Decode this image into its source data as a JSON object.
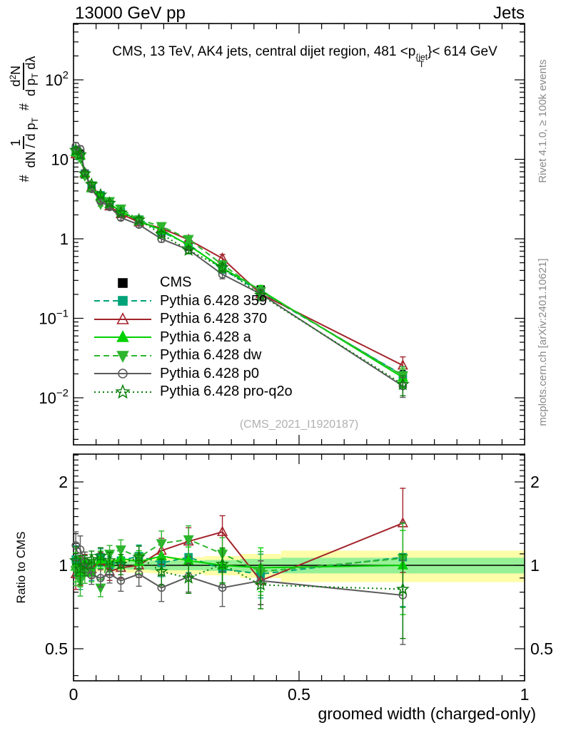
{
  "header": {
    "left": "13000 GeV pp",
    "right": "Jets"
  },
  "title": {
    "pre": "CMS, 13 TeV, AK4 jets, central dijet region, 481 <p",
    "sup": "{jet",
    "sub": "T",
    "post": "}< 614 GeV"
  },
  "ylabel_main": {
    "hash": "#",
    "frac1": {
      "num": "1",
      "den_pre": "dN / d p",
      "den_sub": "T"
    },
    "frac2": {
      "num_pre": "d",
      "num_sup": "2",
      "num_post": "N",
      "den_pre": "d p",
      "den_sub": "T",
      "den_post": " dλ"
    }
  },
  "credits": {
    "rivet": "Rivet 4.1.0, ≥ 100k events",
    "mcplots": "mcplots.cern.ch [arXiv:2401.10621]"
  },
  "watermark": "(CMS_2021_I1920187)",
  "ratio_panel_label": "Ratio to CMS",
  "xlabel": "groomed width (charged-only)",
  "chart_data": {
    "type": "line",
    "title": "CMS, 13 TeV, AK4 jets, central dijet region, 481 < pT(jet) < 614 GeV",
    "xlabel": "groomed width (charged-only)",
    "x_range": [
      0,
      1
    ],
    "x_ticks": [
      {
        "v": 0,
        "label": "0"
      },
      {
        "v": 0.5,
        "label": "0.5"
      },
      {
        "v": 1,
        "label": "1"
      }
    ],
    "x_minor_step": 0.05,
    "main_axis": {
      "scale": "log",
      "range": [
        0.0026,
        510
      ],
      "ticks": [
        {
          "v": 100,
          "base": "10",
          "exp": "2"
        },
        {
          "v": 10,
          "base": "10",
          "exp": ""
        },
        {
          "v": 1,
          "base": "1",
          "exp": ""
        },
        {
          "v": 0.1,
          "base": "10",
          "exp": "−1"
        },
        {
          "v": 0.01,
          "base": "10",
          "exp": "−2"
        }
      ]
    },
    "ratio_axis": {
      "scale": "log",
      "range": [
        0.38,
        2.52
      ],
      "ticks": [
        {
          "v": 2,
          "label": "2"
        },
        {
          "v": 1,
          "label": "1"
        },
        {
          "v": 0.5,
          "label": "0.5"
        }
      ],
      "reference_line": 1
    },
    "x": [
      0.005,
      0.015,
      0.025,
      0.04,
      0.06,
      0.08,
      0.105,
      0.145,
      0.195,
      0.255,
      0.33,
      0.415,
      0.73
    ],
    "err_frac": [
      0.1,
      0.1,
      0.07,
      0.06,
      0.06,
      0.06,
      0.07,
      0.08,
      0.09,
      0.1,
      0.12,
      0.15,
      0.28
    ],
    "cms": {
      "label": "CMS",
      "color": "#000000",
      "marker": "square",
      "marker_filled": true,
      "values": [
        12.5,
        11.8,
        6.6,
        4.6,
        3.3,
        2.7,
        2.1,
        1.62,
        1.2,
        0.8,
        0.43,
        0.23,
        0.018
      ]
    },
    "series": [
      {
        "label": "Pythia 6.428 359",
        "color": "#00a278",
        "dash": "8,5",
        "marker": "square",
        "marker_filled": true,
        "ratio": [
          1.05,
          0.93,
          1.0,
          0.95,
          1.07,
          1.0,
          1.04,
          1.08,
          1.02,
          1.07,
          0.97,
          0.93,
          1.07
        ]
      },
      {
        "label": "Pythia 6.428 370",
        "color": "#a3232b",
        "dash": "",
        "marker": "triangle",
        "marker_filled": false,
        "ratio": [
          0.93,
          0.96,
          1.01,
          0.97,
          1.04,
          0.95,
          0.98,
          1.0,
          1.13,
          1.22,
          1.32,
          0.88,
          1.42
        ]
      },
      {
        "label": "Pythia 6.428 a",
        "color": "#00d200",
        "dash": "",
        "marker": "triangle",
        "marker_filled": true,
        "ratio": [
          0.99,
          0.95,
          1.03,
          0.94,
          1.05,
          1.02,
          1.06,
          1.03,
          1.08,
          1.04,
          1.0,
          0.98,
          1.0
        ]
      },
      {
        "label": "Pythia 6.428 dw",
        "color": "#2db52d",
        "dash": "8,5",
        "marker": "triangleDown",
        "marker_filled": true,
        "ratio": [
          0.96,
          0.88,
          0.94,
          1.02,
          0.83,
          1.1,
          1.14,
          1.07,
          1.2,
          1.24,
          1.1,
          0.95,
          1.06
        ]
      },
      {
        "label": "Pythia 6.428 p0",
        "color": "#5a5a5a",
        "dash": "",
        "marker": "circle",
        "marker_filled": false,
        "ratio": [
          1.18,
          1.14,
          1.03,
          0.92,
          0.9,
          0.93,
          0.88,
          0.93,
          0.83,
          0.91,
          0.83,
          0.88,
          0.78
        ]
      },
      {
        "label": "Pythia 6.428 pro-q2o",
        "color": "#0a7f0a",
        "dash": "2,4",
        "marker": "star",
        "marker_filled": false,
        "ratio": [
          1.04,
          0.97,
          1.0,
          1.05,
          1.08,
          1.04,
          1.01,
          1.07,
          0.95,
          0.9,
          1.01,
          0.85,
          0.82
        ]
      }
    ],
    "uncertainty_bands": {
      "bin_edges": [
        0,
        0.01,
        0.02,
        0.03,
        0.05,
        0.07,
        0.09,
        0.12,
        0.17,
        0.22,
        0.29,
        0.37,
        0.46,
        1.0
      ],
      "yellow_halfwidth": [
        0.05,
        0.05,
        0.05,
        0.05,
        0.05,
        0.05,
        0.055,
        0.06,
        0.065,
        0.07,
        0.08,
        0.1,
        0.13
      ],
      "green_halfwidth": [
        0.03,
        0.03,
        0.03,
        0.03,
        0.03,
        0.03,
        0.032,
        0.035,
        0.04,
        0.04,
        0.045,
        0.055,
        0.065
      ],
      "colors": {
        "yellow": "#fefda8",
        "green": "#96f096"
      }
    },
    "legend_position": "middle-left",
    "grid": false
  }
}
